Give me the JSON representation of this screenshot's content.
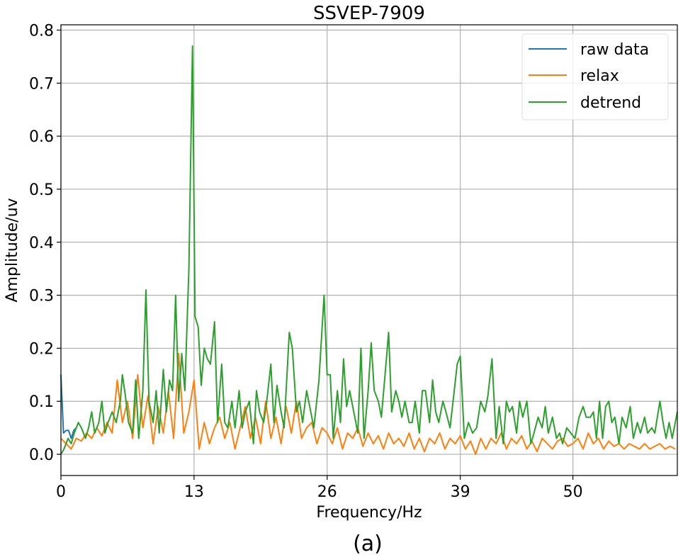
{
  "chart_data": {
    "type": "line",
    "title": "SSVEP-7909",
    "xlabel": "Frequency/Hz",
    "ylabel": "Amplitude/uv",
    "caption": "(a)",
    "xlim": [
      0,
      60.2
    ],
    "ylim": [
      -0.04,
      0.81
    ],
    "xticks": [
      0,
      13,
      26,
      39,
      50
    ],
    "xtick_labels": [
      "0",
      "13",
      "26",
      "39",
      "50"
    ],
    "yticks": [
      0.0,
      0.1,
      0.2,
      0.3,
      0.4,
      0.5,
      0.6,
      0.7,
      0.8
    ],
    "ytick_labels": [
      "0.0",
      "0.1",
      "0.2",
      "0.3",
      "0.4",
      "0.5",
      "0.6",
      "0.7",
      "0.8"
    ],
    "grid": true,
    "legend_position": "top-right",
    "series": [
      {
        "name": "raw data",
        "color": "#1f77b4",
        "points": [
          [
            0,
            0.15
          ],
          [
            0.25,
            0.04
          ],
          [
            0.5,
            0.045
          ],
          [
            0.75,
            0.045
          ],
          [
            1,
            0.03
          ],
          [
            1.25,
            0.045
          ],
          [
            1.5,
            0.05
          ]
        ]
      },
      {
        "name": "relax",
        "color": "#ff7f0e",
        "x_start": 0,
        "x_step": 0.5,
        "values": [
          0.03,
          0.02,
          0.01,
          0.03,
          0.025,
          0.04,
          0.03,
          0.05,
          0.035,
          0.06,
          0.04,
          0.14,
          0.06,
          0.1,
          0.03,
          0.15,
          0.05,
          0.11,
          0.02,
          0.09,
          0.04,
          0.12,
          0.03,
          0.19,
          0.04,
          0.08,
          0.14,
          0.01,
          0.06,
          0.02,
          0.05,
          0.07,
          0.03,
          0.06,
          0.01,
          0.05,
          0.09,
          0.03,
          0.07,
          0.02,
          0.1,
          0.03,
          0.07,
          0.02,
          0.09,
          0.04,
          0.1,
          0.03,
          0.05,
          0.06,
          0.02,
          0.05,
          0.04,
          0.02,
          0.05,
          0.01,
          0.04,
          0.03,
          0.05,
          0.015,
          0.04,
          0.02,
          0.035,
          0.01,
          0.04,
          0.02,
          0.03,
          0.015,
          0.04,
          0.01,
          0.03,
          0.005,
          0.03,
          0.02,
          0.04,
          0.01,
          0.03,
          0.02,
          0.035,
          0.01,
          0.025,
          0.0,
          0.03,
          0.01,
          0.03,
          0.02,
          0.04,
          0.01,
          0.03,
          0.02,
          0.035,
          0.01,
          0.025,
          0.005,
          0.03,
          0.02,
          0.01,
          0.025,
          0.03,
          0.015,
          0.02,
          0.03,
          0.01,
          0.04,
          0.02,
          0.03,
          0.01,
          0.025,
          0.015,
          0.02,
          0.01,
          0.02,
          0.015,
          0.01,
          0.02,
          0.01,
          0.015,
          0.02,
          0.01,
          0.015,
          0.01
        ]
      },
      {
        "name": "detrend",
        "color": "#2ca02c",
        "points": [
          [
            0,
            0
          ],
          [
            0.3,
            0.01
          ],
          [
            0.7,
            0.03
          ],
          [
            1,
            0.02
          ],
          [
            1.3,
            0.04
          ],
          [
            1.7,
            0.06
          ],
          [
            2,
            0.05
          ],
          [
            2.4,
            0.03
          ],
          [
            2.7,
            0.05
          ],
          [
            3,
            0.08
          ],
          [
            3.3,
            0.04
          ],
          [
            3.7,
            0.06
          ],
          [
            4,
            0.1
          ],
          [
            4.3,
            0.04
          ],
          [
            4.6,
            0.06
          ],
          [
            5,
            0.08
          ],
          [
            5.4,
            0.06
          ],
          [
            5.8,
            0.1
          ],
          [
            6,
            0.15
          ],
          [
            6.3,
            0.11
          ],
          [
            6.6,
            0.06
          ],
          [
            7,
            0.04
          ],
          [
            7.3,
            0.14
          ],
          [
            7.6,
            0.03
          ],
          [
            8,
            0.12
          ],
          [
            8.3,
            0.31
          ],
          [
            8.6,
            0.1
          ],
          [
            9,
            0.06
          ],
          [
            9.3,
            0.12
          ],
          [
            9.6,
            0.04
          ],
          [
            10,
            0.16
          ],
          [
            10.3,
            0.08
          ],
          [
            10.6,
            0.14
          ],
          [
            10.9,
            0.12
          ],
          [
            11.2,
            0.3
          ],
          [
            11.5,
            0.1
          ],
          [
            11.8,
            0.19
          ],
          [
            12.1,
            0.12
          ],
          [
            12.5,
            0.35
          ],
          [
            12.85,
            0.77
          ],
          [
            13.1,
            0.26
          ],
          [
            13.4,
            0.24
          ],
          [
            13.7,
            0.13
          ],
          [
            14,
            0.2
          ],
          [
            14.3,
            0.18
          ],
          [
            14.6,
            0.17
          ],
          [
            15,
            0.25
          ],
          [
            15.3,
            0.06
          ],
          [
            15.7,
            0.17
          ],
          [
            16,
            0.06
          ],
          [
            16.3,
            0.05
          ],
          [
            16.7,
            0.1
          ],
          [
            17,
            0.05
          ],
          [
            17.4,
            0.12
          ],
          [
            17.7,
            0.05
          ],
          [
            18,
            0.08
          ],
          [
            18.4,
            0.1
          ],
          [
            18.8,
            0.02
          ],
          [
            19.1,
            0.12
          ],
          [
            19.4,
            0.08
          ],
          [
            19.8,
            0.06
          ],
          [
            20.1,
            0.1
          ],
          [
            20.5,
            0.17
          ],
          [
            20.8,
            0.06
          ],
          [
            21.1,
            0.13
          ],
          [
            21.5,
            0.08
          ],
          [
            21.8,
            0.05
          ],
          [
            22.3,
            0.23
          ],
          [
            22.6,
            0.2
          ],
          [
            23,
            0.08
          ],
          [
            23.3,
            0.1
          ],
          [
            23.6,
            0.06
          ],
          [
            24,
            0.12
          ],
          [
            24.4,
            0.08
          ],
          [
            24.7,
            0.05
          ],
          [
            25.2,
            0.14
          ],
          [
            25.7,
            0.3
          ],
          [
            26,
            0.15
          ],
          [
            26.3,
            0.15
          ],
          [
            26.6,
            0.03
          ],
          [
            27,
            0.12
          ],
          [
            27.3,
            0.06
          ],
          [
            27.6,
            0.18
          ],
          [
            27.9,
            0.09
          ],
          [
            28.2,
            0.12
          ],
          [
            28.6,
            0.08
          ],
          [
            29,
            0.04
          ],
          [
            29.3,
            0.2
          ],
          [
            29.6,
            0.03
          ],
          [
            30,
            0.12
          ],
          [
            30.3,
            0.21
          ],
          [
            30.6,
            0.12
          ],
          [
            31,
            0.1
          ],
          [
            31.3,
            0.07
          ],
          [
            31.7,
            0.16
          ],
          [
            32,
            0.23
          ],
          [
            32.3,
            0.08
          ],
          [
            32.7,
            0.12
          ],
          [
            33,
            0.1
          ],
          [
            33.3,
            0.07
          ],
          [
            33.6,
            0.1
          ],
          [
            34,
            0.06
          ],
          [
            34.3,
            0.06
          ],
          [
            34.6,
            0.1
          ],
          [
            35,
            0.04
          ],
          [
            35.3,
            0.12
          ],
          [
            35.6,
            0.12
          ],
          [
            36,
            0.06
          ],
          [
            36.3,
            0.14
          ],
          [
            36.6,
            0.08
          ],
          [
            36.9,
            0.06
          ],
          [
            37.3,
            0.1
          ],
          [
            37.6,
            0.08
          ],
          [
            38,
            0.05
          ],
          [
            38.3,
            0.1
          ],
          [
            38.7,
            0.17
          ],
          [
            39,
            0.185
          ],
          [
            39.4,
            0.03
          ],
          [
            39.8,
            0.06
          ],
          [
            40.2,
            0.04
          ],
          [
            40.6,
            0.05
          ],
          [
            41,
            0.1
          ],
          [
            41.4,
            0.08
          ],
          [
            41.7,
            0.11
          ],
          [
            42.1,
            0.18
          ],
          [
            42.5,
            0.03
          ],
          [
            42.8,
            0.09
          ],
          [
            43.2,
            0.02
          ],
          [
            43.5,
            0.1
          ],
          [
            43.8,
            0.08
          ],
          [
            44.1,
            0.09
          ],
          [
            44.5,
            0.04
          ],
          [
            44.8,
            0.1
          ],
          [
            45.1,
            0.07
          ],
          [
            45.5,
            0.1
          ],
          [
            45.9,
            0.02
          ],
          [
            46.2,
            0.04
          ],
          [
            46.6,
            0.07
          ],
          [
            47,
            0.05
          ],
          [
            47.3,
            0.09
          ],
          [
            47.6,
            0.04
          ],
          [
            48,
            0.07
          ],
          [
            48.4,
            0.03
          ],
          [
            48.7,
            0.04
          ],
          [
            49,
            0.02
          ],
          [
            49.4,
            0.05
          ],
          [
            49.8,
            0.04
          ],
          [
            50.2,
            0.03
          ],
          [
            50.6,
            0.07
          ],
          [
            51,
            0.09
          ],
          [
            51.3,
            0.07
          ],
          [
            51.7,
            0.07
          ],
          [
            52,
            0.08
          ],
          [
            52.3,
            0.03
          ],
          [
            52.6,
            0.1
          ],
          [
            52.9,
            0.03
          ],
          [
            53.2,
            0.09
          ],
          [
            53.5,
            0.1
          ],
          [
            53.8,
            0.06
          ],
          [
            54.1,
            0.07
          ],
          [
            54.5,
            0.02
          ],
          [
            54.8,
            0.07
          ],
          [
            55.2,
            0.05
          ],
          [
            55.6,
            0.09
          ],
          [
            55.9,
            0.03
          ],
          [
            56.3,
            0.06
          ],
          [
            56.6,
            0.04
          ],
          [
            57,
            0.07
          ],
          [
            57.3,
            0.04
          ],
          [
            57.7,
            0.05
          ],
          [
            58,
            0.04
          ],
          [
            58.5,
            0.1
          ],
          [
            58.8,
            0.06
          ],
          [
            59.1,
            0.03
          ],
          [
            59.4,
            0.06
          ],
          [
            59.7,
            0.03
          ],
          [
            60.2,
            0.08
          ]
        ]
      }
    ]
  }
}
